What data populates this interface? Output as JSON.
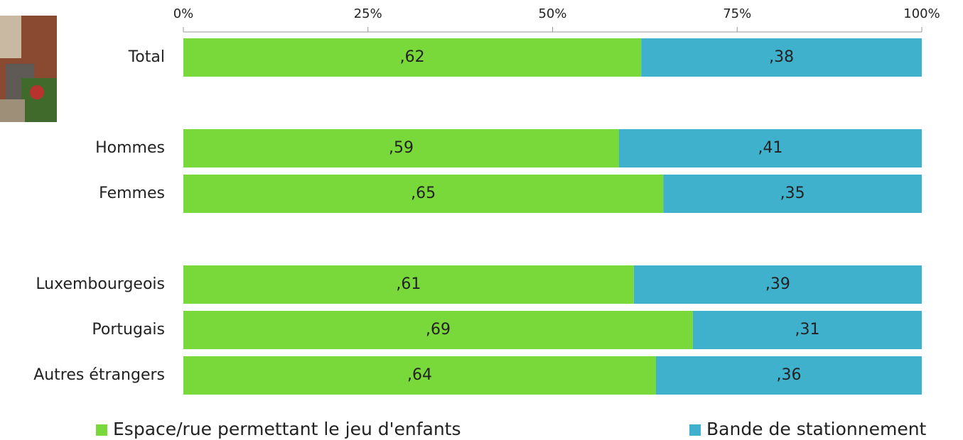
{
  "chart_data": {
    "type": "stacked-bar-horizontal",
    "categories": [
      "Total",
      null,
      "Hommes",
      "Femmes",
      null,
      "Luxembourgeois",
      "Portugais",
      "Autres étrangers"
    ],
    "series": [
      {
        "name": "Espace/rue permettant le jeu d'enfants",
        "color": "#7ad93a",
        "values": [
          62,
          null,
          59,
          65,
          null,
          61,
          69,
          64
        ],
        "value_labels": [
          ",62",
          null,
          ",59",
          ",65",
          null,
          ",61",
          ",69",
          ",64"
        ]
      },
      {
        "name": "Bande de stationnement",
        "color": "#40b1cd",
        "values": [
          38,
          null,
          41,
          35,
          null,
          39,
          31,
          36
        ],
        "value_labels": [
          ",38",
          null,
          ",41",
          ",35",
          null,
          ",39",
          ",31",
          ",36"
        ]
      }
    ],
    "xlim": [
      0,
      100
    ],
    "xticks": [
      {
        "value": 0,
        "label": "0%"
      },
      {
        "value": 25,
        "label": "25%"
      },
      {
        "value": 50,
        "label": "50%"
      },
      {
        "value": 75,
        "label": "75%"
      },
      {
        "value": 100,
        "label": "100%"
      }
    ]
  }
}
